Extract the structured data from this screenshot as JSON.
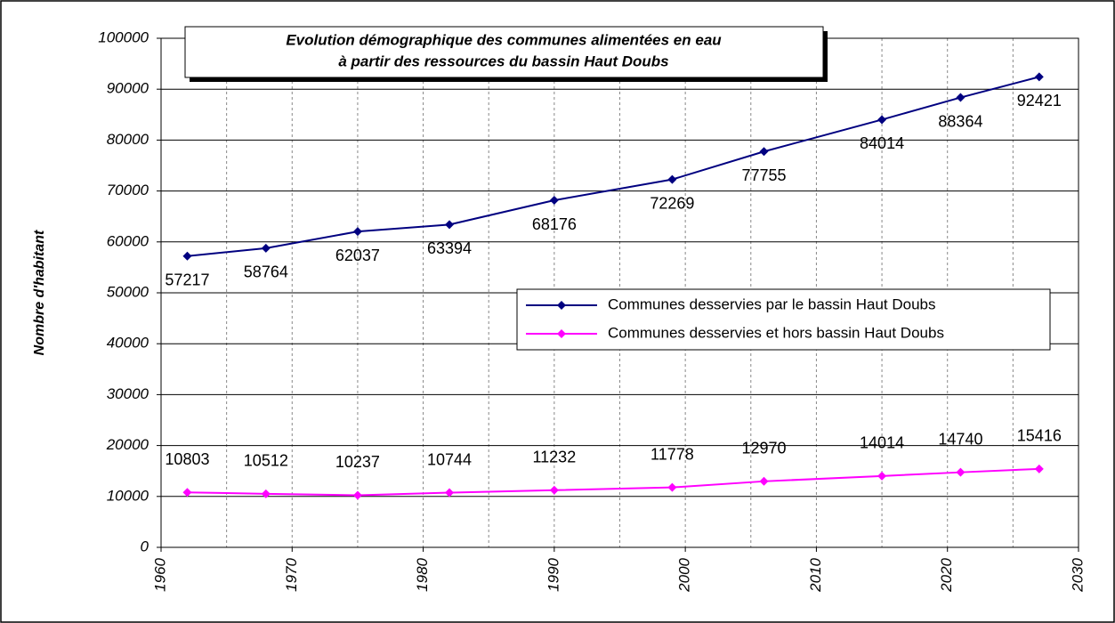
{
  "chart_data": {
    "type": "line",
    "title_lines": [
      "Evolution démographique des communes alimentées en eau",
      "à partir des ressources du bassin Haut Doubs"
    ],
    "y_label": "Nombre d'habitant",
    "x": [
      1962,
      1968,
      1975,
      1982,
      1990,
      1999,
      2006,
      2015,
      2021,
      2027
    ],
    "series": [
      {
        "name": "Communes desservies par le bassin Haut Doubs",
        "color": "#000080",
        "label_position": "below",
        "values": [
          57217,
          58764,
          62037,
          63394,
          68176,
          72269,
          77755,
          84014,
          88364,
          92421
        ]
      },
      {
        "name": "Communes desservies et hors bassin Haut Doubs",
        "color": "#ff00ff",
        "label_position": "above",
        "values": [
          10803,
          10512,
          10237,
          10744,
          11232,
          11778,
          12970,
          14014,
          14740,
          15416
        ]
      }
    ],
    "xlim": [
      1960,
      2030
    ],
    "xticks": [
      1960,
      1970,
      1980,
      1990,
      2000,
      2010,
      2020,
      2030
    ],
    "xgrid": [
      1965,
      1970,
      1975,
      1980,
      1985,
      1990,
      1995,
      2000,
      2005,
      2010,
      2015,
      2020,
      2025
    ],
    "ylim": [
      0,
      100000
    ],
    "yticks": [
      0,
      10000,
      20000,
      30000,
      40000,
      50000,
      60000,
      70000,
      80000,
      90000,
      100000
    ],
    "grid": true,
    "legend": "right"
  }
}
